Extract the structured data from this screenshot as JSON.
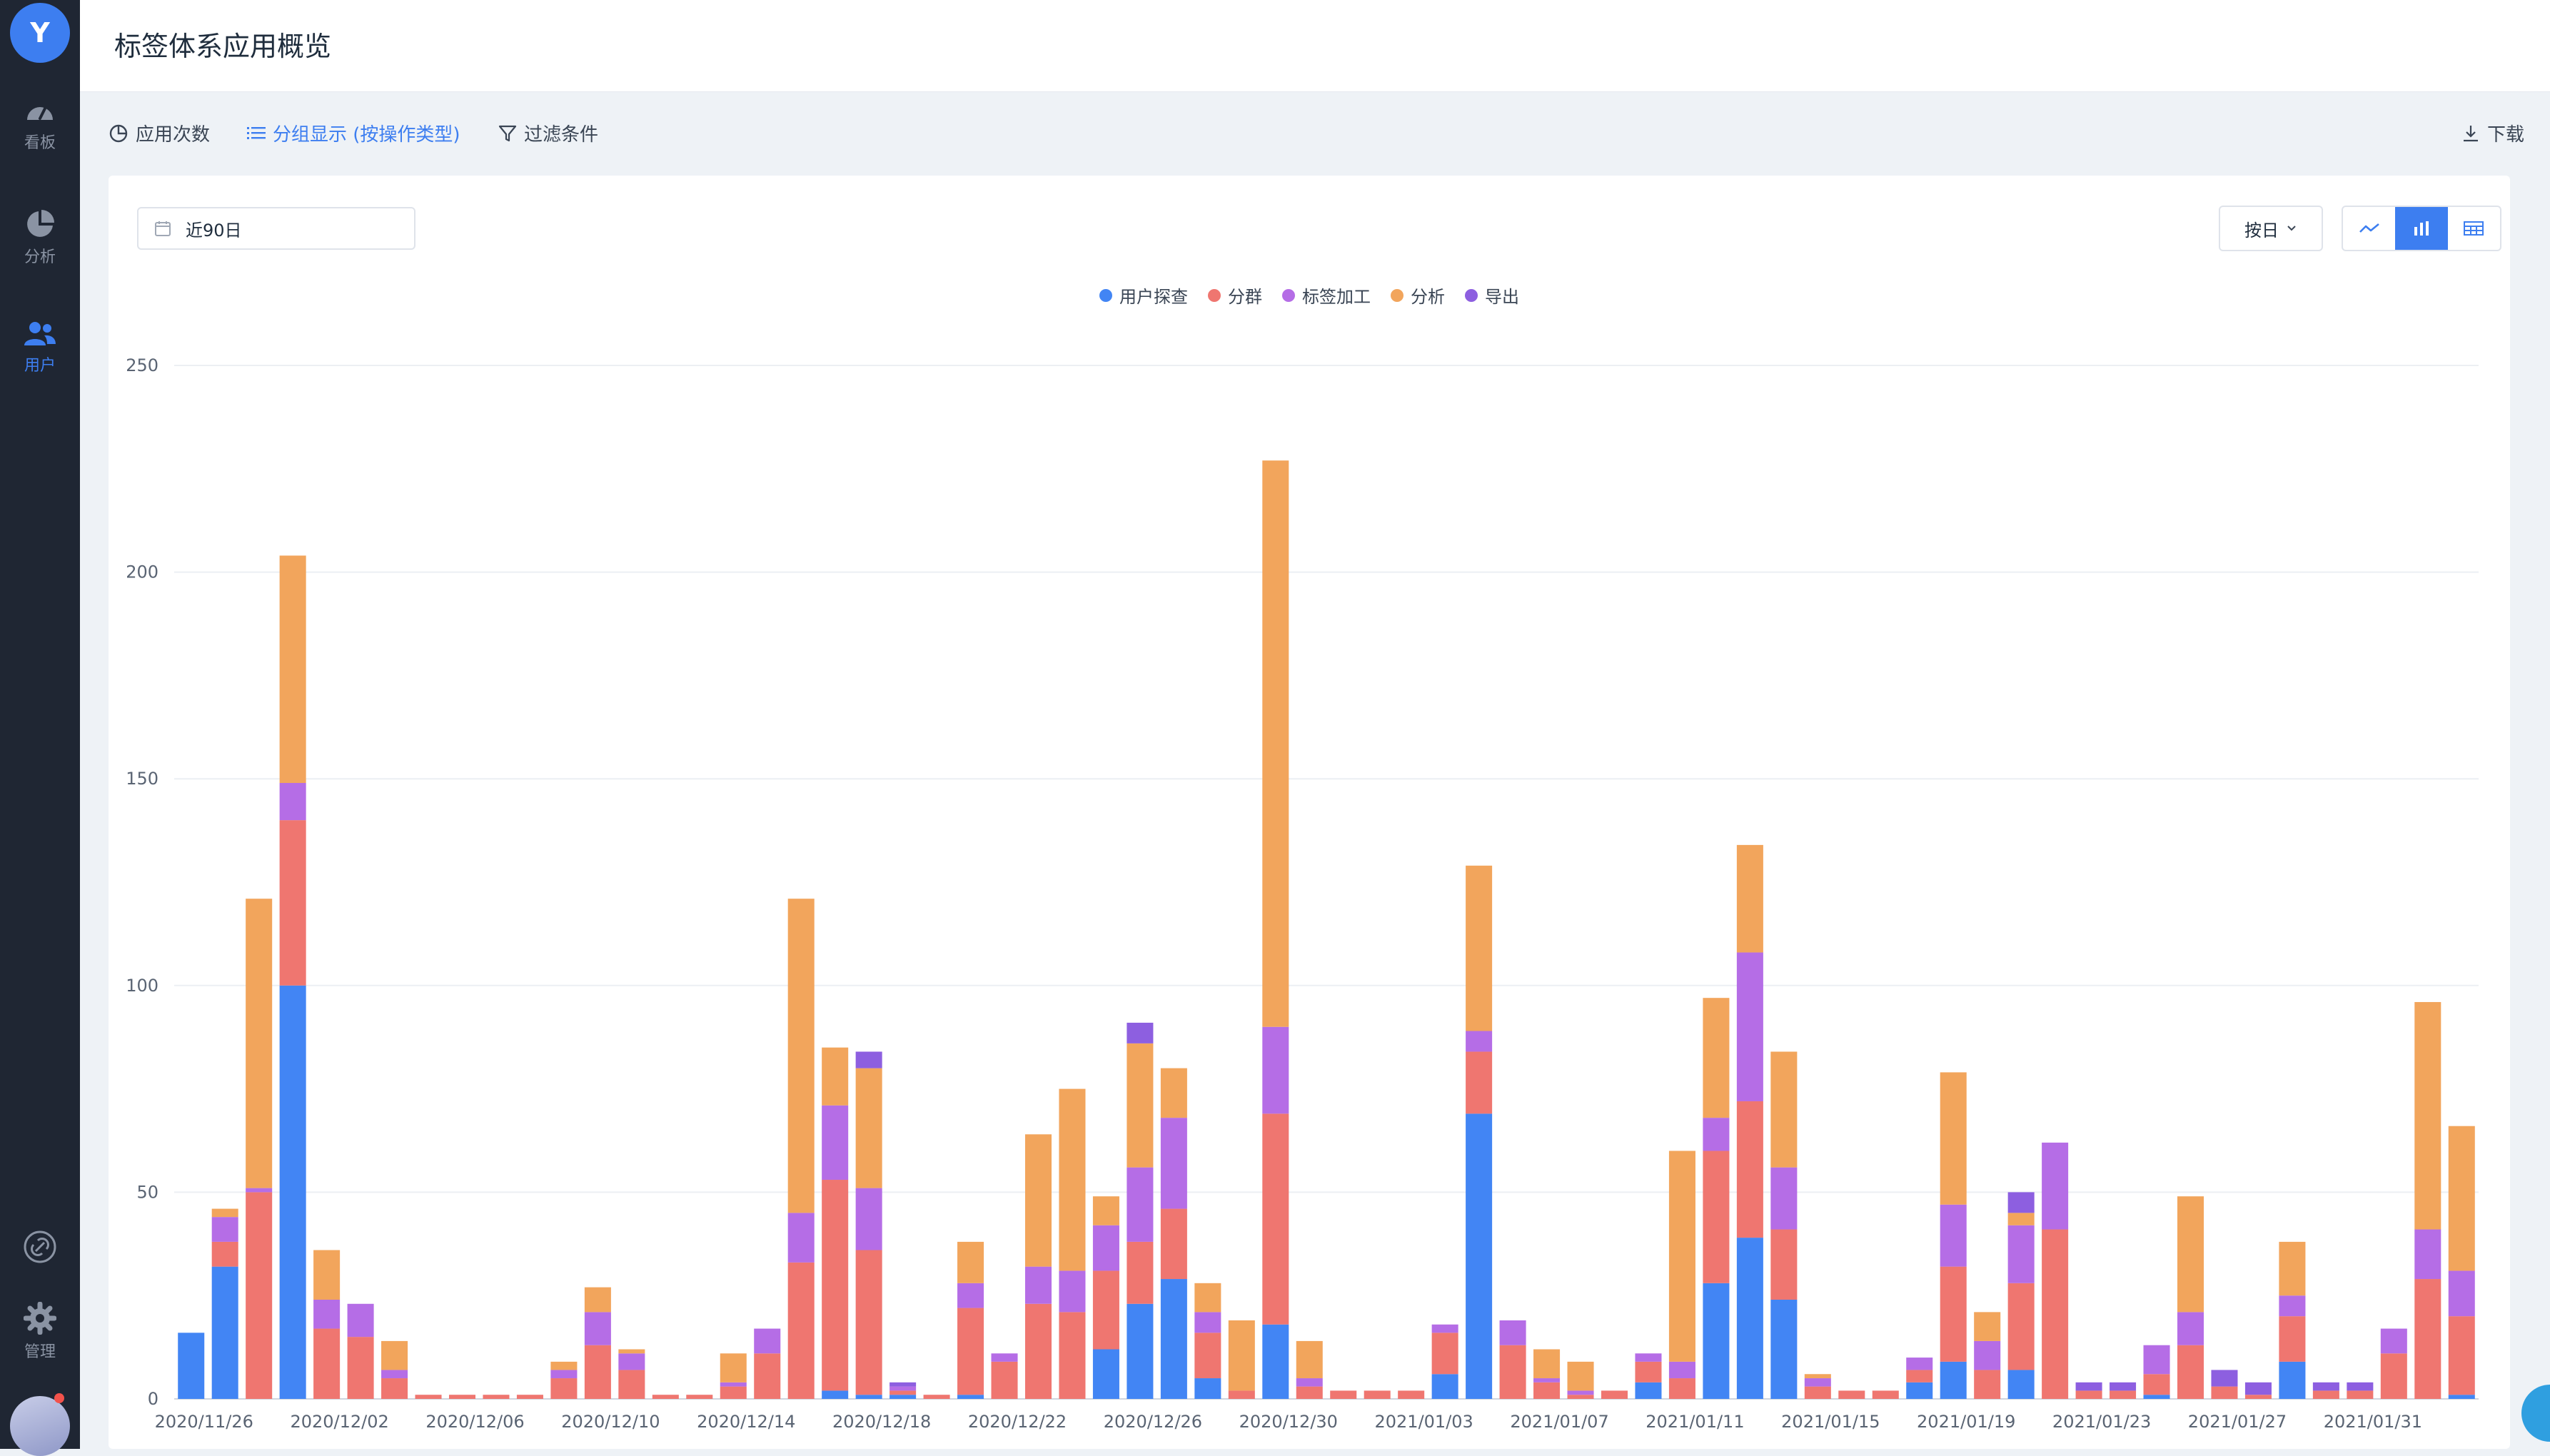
{
  "app": {
    "logo_letter": "Y"
  },
  "sidebar": {
    "items": [
      {
        "label": "看板",
        "icon": "gauge-icon"
      },
      {
        "label": "分析",
        "icon": "pie-icon"
      },
      {
        "label": "用户",
        "icon": "users-icon",
        "active": true
      }
    ],
    "bottom": [
      {
        "label": "",
        "icon": "link-icon"
      },
      {
        "label": "管理",
        "icon": "gear-icon"
      }
    ]
  },
  "header": {
    "title": "标签体系应用概览"
  },
  "toolbar": {
    "count_label": "应用次数",
    "group_label": "分组显示 (按操作类型)",
    "filter_label": "过滤条件",
    "download_label": "下载"
  },
  "controls": {
    "date_range": "近90日",
    "granularity": "按日",
    "views": [
      "line-icon",
      "bar-icon",
      "table-icon"
    ],
    "active_view": "bar-icon"
  },
  "colors": {
    "用户探查": "#4285f4",
    "分群": "#ef7670",
    "标签加工": "#b56de6",
    "分析": "#f2a55c",
    "导出": "#8d5fe0"
  },
  "chart_data": {
    "type": "bar",
    "stacked": true,
    "title": "",
    "xlabel": "",
    "ylabel": "",
    "ylim": [
      0,
      250
    ],
    "yticks": [
      0,
      50,
      100,
      150,
      200,
      250
    ],
    "grid": true,
    "legend_position": "top-center",
    "x_tick_labels": [
      "2020/11/26",
      "2020/12/02",
      "2020/12/06",
      "2020/12/10",
      "2020/12/14",
      "2020/12/18",
      "2020/12/22",
      "2020/12/26",
      "2020/12/30",
      "2021/01/03",
      "2021/01/07",
      "2021/01/11",
      "2021/01/15",
      "2021/01/19",
      "2021/01/23",
      "2021/01/27",
      "2021/01/31"
    ],
    "series_order": [
      "用户探查",
      "分群",
      "标签加工",
      "分析",
      "导出"
    ],
    "values": [
      [
        16,
        0,
        0,
        0,
        0
      ],
      [
        32,
        6,
        6,
        2,
        0
      ],
      [
        0,
        50,
        1,
        70,
        0
      ],
      [
        100,
        40,
        9,
        55,
        0
      ],
      [
        0,
        17,
        7,
        12,
        0
      ],
      [
        0,
        15,
        8,
        0,
        0
      ],
      [
        0,
        5,
        2,
        7,
        0
      ],
      [
        0,
        1,
        0,
        0,
        0
      ],
      [
        0,
        1,
        0,
        0,
        0
      ],
      [
        0,
        1,
        0,
        0,
        0
      ],
      [
        0,
        1,
        0,
        0,
        0
      ],
      [
        0,
        5,
        2,
        2,
        0
      ],
      [
        0,
        13,
        8,
        6,
        0
      ],
      [
        0,
        7,
        4,
        1,
        0
      ],
      [
        0,
        1,
        0,
        0,
        0
      ],
      [
        0,
        1,
        0,
        0,
        0
      ],
      [
        0,
        3,
        1,
        7,
        0
      ],
      [
        0,
        11,
        6,
        0,
        0
      ],
      [
        0,
        33,
        12,
        76,
        0
      ],
      [
        2,
        51,
        18,
        14,
        0
      ],
      [
        1,
        35,
        15,
        29,
        4
      ],
      [
        1,
        1,
        1,
        0,
        1
      ],
      [
        0,
        1,
        0,
        0,
        0
      ],
      [
        1,
        21,
        6,
        10,
        0
      ],
      [
        0,
        9,
        2,
        0,
        0
      ],
      [
        0,
        23,
        9,
        32,
        0
      ],
      [
        0,
        21,
        10,
        44,
        0
      ],
      [
        12,
        19,
        11,
        7,
        0
      ],
      [
        23,
        15,
        18,
        30,
        5
      ],
      [
        29,
        17,
        22,
        12,
        0
      ],
      [
        5,
        11,
        5,
        7,
        0
      ],
      [
        0,
        2,
        0,
        17,
        0
      ],
      [
        18,
        51,
        21,
        137,
        0
      ],
      [
        0,
        3,
        2,
        9,
        0
      ],
      [
        0,
        2,
        0,
        0,
        0
      ],
      [
        0,
        2,
        0,
        0,
        0
      ],
      [
        0,
        2,
        0,
        0,
        0
      ],
      [
        6,
        10,
        2,
        0,
        0
      ],
      [
        69,
        15,
        5,
        40,
        0
      ],
      [
        0,
        13,
        6,
        0,
        0
      ],
      [
        0,
        4,
        1,
        7,
        0
      ],
      [
        0,
        1,
        1,
        7,
        0
      ],
      [
        0,
        2,
        0,
        0,
        0
      ],
      [
        4,
        5,
        2,
        0,
        0
      ],
      [
        0,
        5,
        4,
        51,
        0
      ],
      [
        28,
        32,
        8,
        29,
        0
      ],
      [
        39,
        33,
        36,
        26,
        0
      ],
      [
        24,
        17,
        15,
        28,
        0
      ],
      [
        0,
        3,
        2,
        1,
        0
      ],
      [
        0,
        2,
        0,
        0,
        0
      ],
      [
        0,
        2,
        0,
        0,
        0
      ],
      [
        4,
        3,
        3,
        0,
        0
      ],
      [
        9,
        23,
        15,
        32,
        0
      ],
      [
        0,
        7,
        7,
        7,
        0
      ],
      [
        7,
        21,
        14,
        3,
        5
      ],
      [
        0,
        41,
        21,
        0,
        0
      ],
      [
        0,
        2,
        0,
        0,
        2
      ],
      [
        0,
        2,
        0,
        0,
        2
      ],
      [
        1,
        5,
        7,
        0,
        0
      ],
      [
        0,
        13,
        8,
        28,
        0
      ],
      [
        0,
        3,
        0,
        0,
        4
      ],
      [
        0,
        1,
        0,
        0,
        3
      ],
      [
        9,
        11,
        5,
        13,
        0
      ],
      [
        0,
        2,
        0,
        0,
        2
      ],
      [
        0,
        2,
        0,
        0,
        2
      ],
      [
        0,
        11,
        6,
        0,
        0
      ],
      [
        0,
        29,
        12,
        55,
        0
      ],
      [
        1,
        19,
        11,
        35,
        0
      ]
    ]
  }
}
